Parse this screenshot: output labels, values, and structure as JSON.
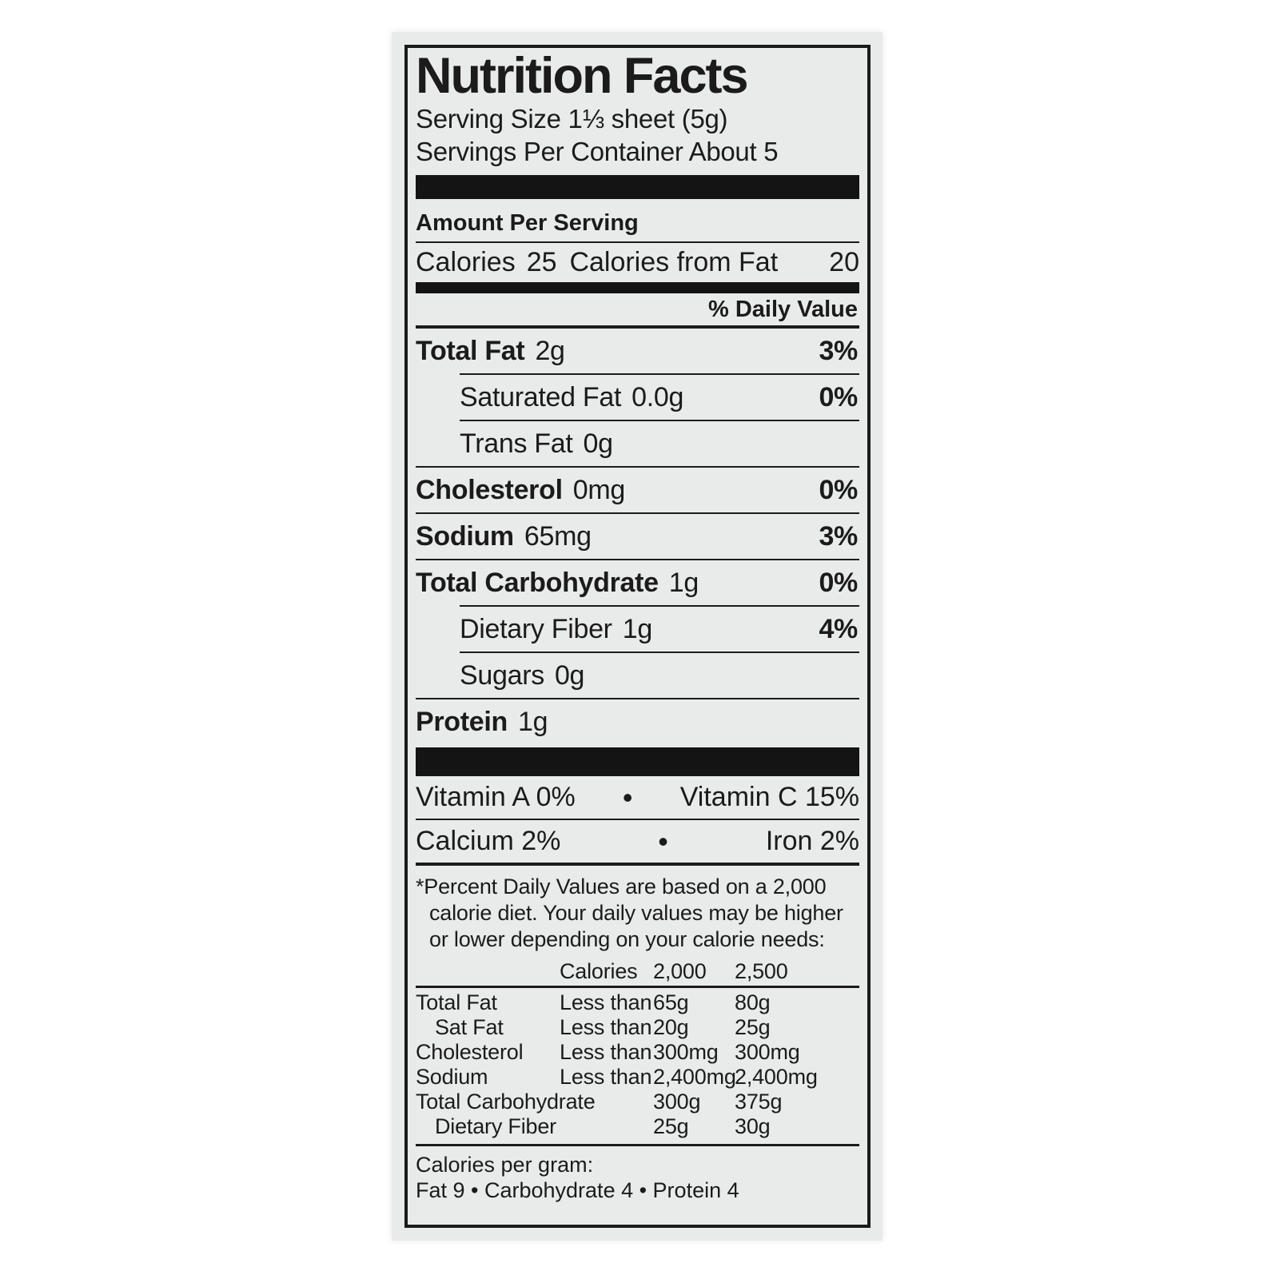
{
  "page": {
    "background": "#ffffff",
    "label_bg": "#e9ebea",
    "ink": "#1b1b1b"
  },
  "label": {
    "title": "Nutrition Facts",
    "serving_size": "Serving Size 1⅓ sheet  (5g)",
    "servings_per_container": "Servings Per Container About 5",
    "amount_per_serving": "Amount Per Serving",
    "calories": {
      "label": "Calories",
      "value": "25",
      "from_fat_label": "Calories from Fat",
      "from_fat_value": "20"
    },
    "daily_value_header": "% Daily Value",
    "nutrients": [
      {
        "name": "Total Fat",
        "amount": "2g",
        "dv": "3%"
      },
      {
        "name": "Saturated Fat",
        "amount": "0.0g",
        "dv": "0%"
      },
      {
        "name": "Trans Fat",
        "amount": "0g",
        "dv": ""
      },
      {
        "name": "Cholesterol",
        "amount": "0mg",
        "dv": "0%"
      },
      {
        "name": "Sodium",
        "amount": "65mg",
        "dv": "3%"
      },
      {
        "name": "Total Carbohydrate",
        "amount": "1g",
        "dv": "0%"
      },
      {
        "name": "Dietary Fiber",
        "amount": "1g",
        "dv": "4%"
      },
      {
        "name": "Sugars",
        "amount": "0g",
        "dv": ""
      },
      {
        "name": "Protein",
        "amount": "1g",
        "dv": ""
      }
    ],
    "vitamins": [
      {
        "left": "Vitamin A 0%",
        "bullet": "•",
        "right": "Vitamin C 15%"
      },
      {
        "left": "Calcium 2%",
        "bullet": "•",
        "right": "Iron 2%"
      }
    ],
    "footnote": "*Percent Daily Values are based on a 2,000 calorie diet. Your daily values may be higher or lower depending on your calorie needs:",
    "dv_table": {
      "header": {
        "calories": "Calories",
        "c2000": "2,000",
        "c2500": "2,500"
      },
      "rows": [
        {
          "name": "Total Fat",
          "qual": "Less than",
          "v1": "65g",
          "v2": "80g"
        },
        {
          "name": "Sat Fat",
          "qual": "Less than",
          "v1": "20g",
          "v2": "25g"
        },
        {
          "name": "Cholesterol",
          "qual": "Less than",
          "v1": "300mg",
          "v2": "300mg"
        },
        {
          "name": "Sodium",
          "qual": "Less than",
          "v1": "2,400mg",
          "v2": "2,400mg"
        },
        {
          "name": "Total Carbohydrate",
          "qual": "",
          "v1": "300g",
          "v2": "375g"
        },
        {
          "name": "Dietary Fiber",
          "qual": "",
          "v1": "25g",
          "v2": "30g"
        }
      ]
    },
    "calories_per_gram": {
      "title": "Calories per gram:",
      "values": "Fat 9 • Carbohydrate 4 • Protein 4"
    }
  }
}
